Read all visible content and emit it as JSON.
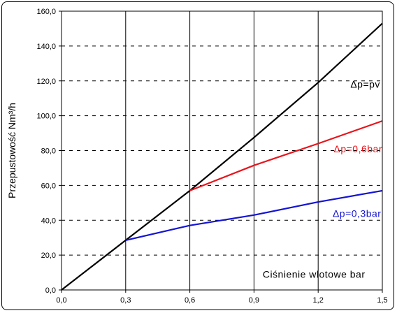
{
  "chart_data": {
    "type": "line",
    "xlabel": "Ciśnienie wlotowe bar",
    "ylabel": "Przepustowość Nm³/h",
    "xlim": [
      0,
      1.5
    ],
    "ylim": [
      0,
      160
    ],
    "x_ticks": [
      "0,0",
      "0,3",
      "0,6",
      "0,9",
      "1,2",
      "1,5"
    ],
    "x_tick_values": [
      0,
      0.3,
      0.6,
      0.9,
      1.2,
      1.5
    ],
    "y_ticks": [
      "0,0",
      "20,0",
      "40,0",
      "60,0",
      "80,0",
      "100,0",
      "120,0",
      "140,0",
      "160,0"
    ],
    "y_tick_values": [
      0,
      20,
      40,
      60,
      80,
      100,
      120,
      140,
      160
    ],
    "grid": {
      "x": "solid vertical lines",
      "y": "dashed horizontal lines"
    },
    "series": [
      {
        "name": "Δp=pv",
        "color": "#000000",
        "x": [
          0,
          0.3,
          0.6,
          0.9,
          1.2,
          1.5
        ],
        "y": [
          0,
          28.5,
          57,
          87.5,
          119,
          153
        ]
      },
      {
        "name": "Δp=0,6bar",
        "color": "#e8141b",
        "x": [
          0.6,
          0.9,
          1.2,
          1.5
        ],
        "y": [
          57,
          71.5,
          84,
          97
        ]
      },
      {
        "name": "Δp=0,3bar",
        "color": "#1414d2",
        "x": [
          0.3,
          0.6,
          0.9,
          1.2,
          1.5
        ],
        "y": [
          28.5,
          37,
          43,
          50.5,
          57
        ]
      }
    ]
  }
}
